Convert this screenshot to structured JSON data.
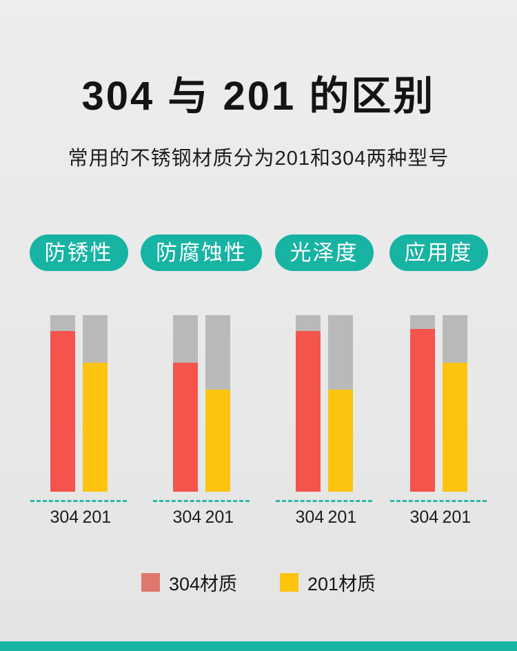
{
  "page": {
    "title": "304 与 201 的区别",
    "subtitle": "常用的不锈钢材质分为201和304两种型号"
  },
  "chart_data": {
    "type": "bar",
    "categories": [
      "防锈性",
      "防腐蚀性",
      "光泽度",
      "应用度"
    ],
    "bar_labels": [
      "304",
      "201"
    ],
    "series": [
      {
        "name": "304材质",
        "values": [
          91,
          73,
          91,
          92
        ],
        "color": "#f5544c",
        "legend_color": "#e0766c"
      },
      {
        "name": "201材质",
        "values": [
          73,
          58,
          58,
          73
        ],
        "color": "#fcc40e",
        "legend_color": "#fcc40e"
      }
    ],
    "ylim": [
      0,
      100
    ],
    "track_color": "#b9b9b9",
    "baseline_color": "#2cb5a6",
    "legend_position": "bottom",
    "title": "304 与 201 的区别"
  },
  "colors": {
    "accent_teal": "#17b3a3",
    "background": "#e9e9e9",
    "title_text": "#141414",
    "bottom_bar": "#17b3a3"
  }
}
